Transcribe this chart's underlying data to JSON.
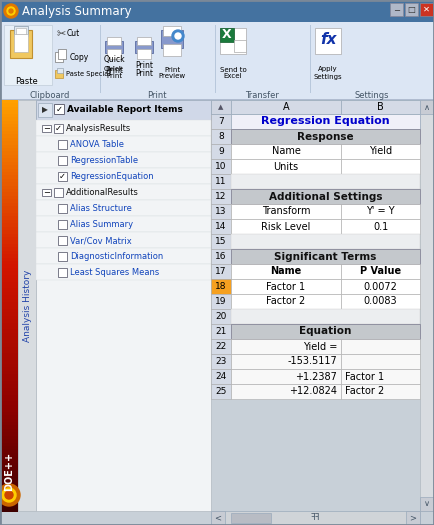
{
  "title": "Analysis Summary",
  "tree_items": [
    {
      "label": "AnalysisResults",
      "indent": 0,
      "checked": true,
      "has_minus": true
    },
    {
      "label": "ANOVA Table",
      "indent": 1,
      "checked": false,
      "has_minus": false
    },
    {
      "label": "RegressionTable",
      "indent": 1,
      "checked": false,
      "has_minus": false
    },
    {
      "label": "RegressionEquation",
      "indent": 1,
      "checked": true,
      "has_minus": false
    },
    {
      "label": "AdditionalResults",
      "indent": 0,
      "checked": false,
      "has_minus": true
    },
    {
      "label": "Alias Structure",
      "indent": 1,
      "checked": false,
      "has_minus": false
    },
    {
      "label": "Alias Summary",
      "indent": 1,
      "checked": false,
      "has_minus": false
    },
    {
      "label": "Var/Cov Matrix",
      "indent": 1,
      "checked": false,
      "has_minus": false
    },
    {
      "label": "DiagnosticInformation",
      "indent": 1,
      "checked": false,
      "has_minus": false
    },
    {
      "label": "Least Squares Means",
      "indent": 1,
      "checked": false,
      "has_minus": false
    }
  ],
  "table_rows": [
    {
      "row": "7",
      "col_a": "Regression Equation",
      "col_b": "",
      "style": "header_blue"
    },
    {
      "row": "8",
      "col_a": "Response",
      "col_b": "",
      "style": "header_dark"
    },
    {
      "row": "9",
      "col_a": "Name",
      "col_b": "Yield",
      "style": "normal"
    },
    {
      "row": "10",
      "col_a": "Units",
      "col_b": "",
      "style": "normal"
    },
    {
      "row": "11",
      "col_a": "",
      "col_b": "",
      "style": "empty"
    },
    {
      "row": "12",
      "col_a": "Additional Settings",
      "col_b": "",
      "style": "header_dark"
    },
    {
      "row": "13",
      "col_a": "Transform",
      "col_b": "Y' = Y",
      "style": "normal"
    },
    {
      "row": "14",
      "col_a": "Risk Level",
      "col_b": "0.1",
      "style": "normal"
    },
    {
      "row": "15",
      "col_a": "",
      "col_b": "",
      "style": "empty"
    },
    {
      "row": "16",
      "col_a": "Significant Terms",
      "col_b": "",
      "style": "header_dark"
    },
    {
      "row": "17",
      "col_a": "Name",
      "col_b": "P Value",
      "style": "subheader"
    },
    {
      "row": "18",
      "col_a": "Factor 1",
      "col_b": "0.0072",
      "style": "highlight"
    },
    {
      "row": "19",
      "col_a": "Factor 2",
      "col_b": "0.0083",
      "style": "normal"
    },
    {
      "row": "20",
      "col_a": "",
      "col_b": "",
      "style": "empty"
    },
    {
      "row": "21",
      "col_a": "Equation",
      "col_b": "",
      "style": "header_dark"
    },
    {
      "row": "22",
      "col_a": "Yield =",
      "col_b": "",
      "style": "equation"
    },
    {
      "row": "23",
      "col_a": "-153.5117",
      "col_b": "",
      "style": "equation"
    },
    {
      "row": "24",
      "col_a": "+1.2387",
      "col_b": "Factor 1",
      "style": "equation"
    },
    {
      "row": "25",
      "col_a": "+12.0824",
      "col_b": "Factor 2",
      "style": "equation"
    }
  ]
}
